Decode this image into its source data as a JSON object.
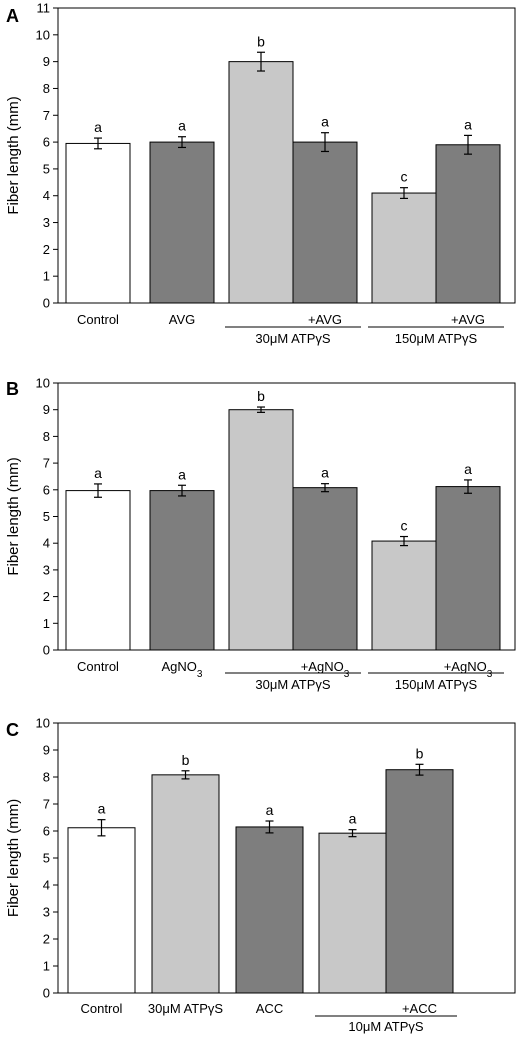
{
  "colors": {
    "white": "#ffffff",
    "light": "#c8c8c8",
    "dark": "#7e7e7e",
    "stroke": "#000000"
  },
  "chart_data": [
    {
      "type": "bar",
      "panel_label": "A",
      "ylabel": "Fiber length (mm)",
      "ylim": [
        0,
        11
      ],
      "yticks": [
        0,
        1,
        2,
        3,
        4,
        5,
        6,
        7,
        8,
        9,
        10,
        11
      ],
      "categories": [
        "Control",
        "AVG",
        "",
        "+AVG",
        "",
        "+AVG"
      ],
      "values": [
        5.95,
        6.0,
        9.0,
        6.0,
        4.1,
        5.9
      ],
      "errors": [
        0.2,
        0.2,
        0.35,
        0.35,
        0.2,
        0.35
      ],
      "letters": [
        "a",
        "a",
        "b",
        "a",
        "c",
        "a"
      ],
      "fills": [
        "white",
        "dark",
        "light",
        "dark",
        "light",
        "dark"
      ],
      "groups": [
        {
          "label": "30μM ATPγS",
          "from": 2,
          "to": 3
        },
        {
          "label": "150μM ATPγS",
          "from": 4,
          "to": 5
        }
      ]
    },
    {
      "type": "bar",
      "panel_label": "B",
      "ylabel": "Fiber length (mm)",
      "ylim": [
        0,
        10
      ],
      "yticks": [
        0,
        1,
        2,
        3,
        4,
        5,
        6,
        7,
        8,
        9,
        10
      ],
      "categories": [
        "Control",
        "AgNO3",
        "",
        "+AgNO3",
        "",
        "+AgNO3"
      ],
      "values": [
        5.97,
        5.97,
        9.0,
        6.08,
        4.08,
        6.12
      ],
      "errors": [
        0.25,
        0.2,
        0.1,
        0.15,
        0.17,
        0.25
      ],
      "letters": [
        "a",
        "a",
        "b",
        "a",
        "c",
        "a"
      ],
      "fills": [
        "white",
        "dark",
        "light",
        "dark",
        "light",
        "dark"
      ],
      "groups": [
        {
          "label": "30μM ATPγS",
          "from": 2,
          "to": 3
        },
        {
          "label": "150μM ATPγS",
          "from": 4,
          "to": 5
        }
      ]
    },
    {
      "type": "bar",
      "panel_label": "C",
      "ylabel": "Fiber length (mm)",
      "ylim": [
        0,
        10
      ],
      "yticks": [
        0,
        1,
        2,
        3,
        4,
        5,
        6,
        7,
        8,
        9,
        10
      ],
      "categories": [
        "Control",
        "30μM ATPγS",
        "ACC",
        "",
        "+ACC"
      ],
      "values": [
        6.12,
        8.08,
        6.15,
        5.92,
        8.27
      ],
      "errors": [
        0.3,
        0.15,
        0.22,
        0.13,
        0.2
      ],
      "letters": [
        "a",
        "b",
        "a",
        "a",
        "b"
      ],
      "fills": [
        "white",
        "light",
        "dark",
        "light",
        "dark"
      ],
      "groups": [
        {
          "label": "10μM ATPγS",
          "from": 3,
          "to": 4
        }
      ]
    }
  ]
}
